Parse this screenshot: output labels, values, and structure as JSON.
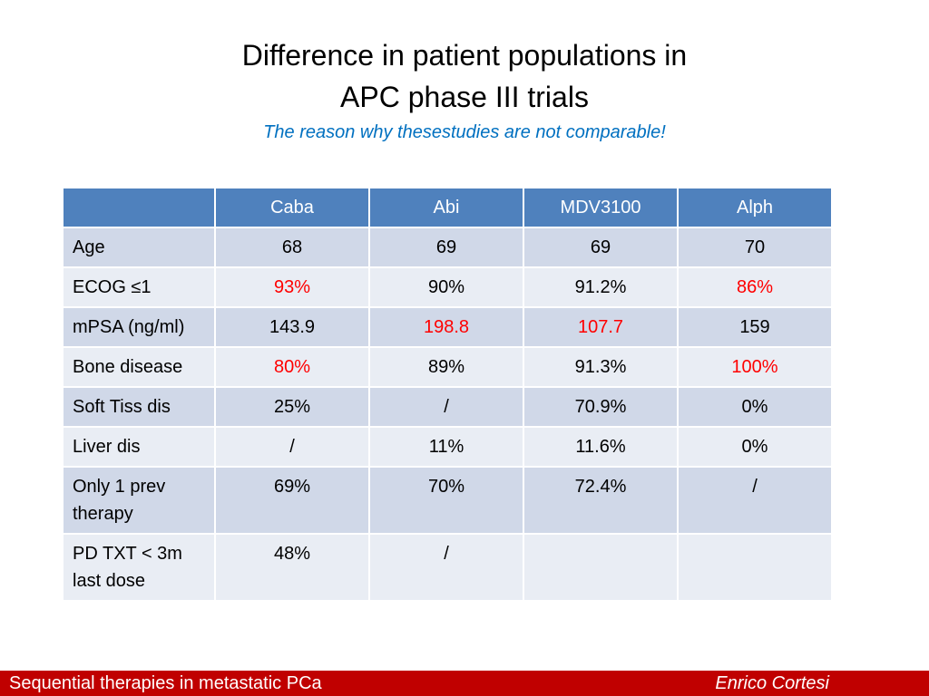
{
  "title": {
    "line1": "Difference in patient populations in",
    "line2": "APC phase III trials",
    "subtitle": "The reason why thesestudies are not comparable!"
  },
  "table": {
    "headers": [
      "",
      "Caba",
      "Abi",
      "MDV3100",
      "Alph"
    ],
    "rows": [
      {
        "label": "Age",
        "cells": [
          "68",
          "69",
          "69",
          "70"
        ],
        "red": [
          false,
          false,
          false,
          false
        ]
      },
      {
        "label": "ECOG ≤1",
        "cells": [
          "93%",
          "90%",
          "91.2%",
          "86%"
        ],
        "red": [
          true,
          false,
          false,
          true
        ]
      },
      {
        "label": "mPSA (ng/ml)",
        "cells": [
          "143.9",
          "198.8",
          "107.7",
          "159"
        ],
        "red": [
          false,
          true,
          true,
          false
        ]
      },
      {
        "label": "Bone disease",
        "cells": [
          "80%",
          "89%",
          "91.3%",
          "100%"
        ],
        "red": [
          true,
          false,
          false,
          true
        ]
      },
      {
        "label": "Soft Tiss dis",
        "cells": [
          "25%",
          "/",
          "70.9%",
          "0%"
        ],
        "red": [
          false,
          false,
          false,
          false
        ]
      },
      {
        "label": "Liver dis",
        "cells": [
          "/",
          "11%",
          "11.6%",
          "0%"
        ],
        "red": [
          false,
          false,
          false,
          false
        ]
      },
      {
        "label": "Only 1 prev therapy",
        "cells": [
          "69%",
          "70%",
          "72.4%",
          "/"
        ],
        "red": [
          false,
          false,
          false,
          false
        ]
      },
      {
        "label": "PD TXT < 3m last dose",
        "cells": [
          "48%",
          "/",
          "",
          ""
        ],
        "red": [
          false,
          false,
          false,
          false
        ]
      }
    ]
  },
  "footer": {
    "left": "Sequential therapies in metastatic PCa",
    "right": "Enrico  Cortesi"
  },
  "colors": {
    "header_bg": "#4f81bd",
    "row_odd": "#d0d8e8",
    "row_even": "#e9edf4",
    "highlight": "#ff0000",
    "subtitle": "#0070c0",
    "footer_bg": "#c00000"
  }
}
